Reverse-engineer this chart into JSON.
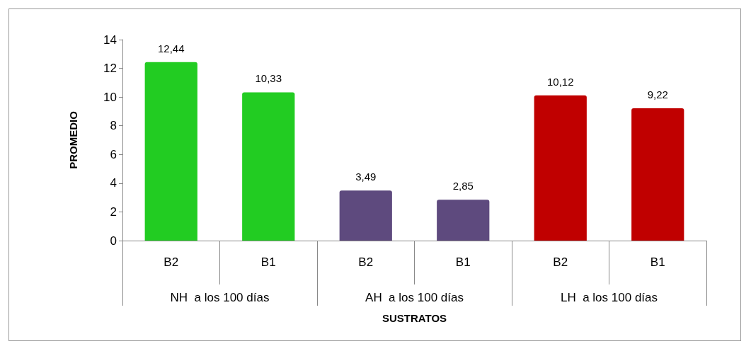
{
  "chart_data": {
    "type": "bar",
    "xlabel": "SUSTRATOS",
    "ylabel": "PROMEDIO",
    "categories": [
      "B2",
      "B1",
      "B2",
      "B1",
      "B2",
      "B1"
    ],
    "annotations": [
      "NH  a los 100 días",
      "AH  a los 100 días",
      "LH  a los 100 días"
    ],
    "values": [
      12.44,
      10.33,
      3.49,
      2.85,
      10.12,
      9.22
    ],
    "value_labels": [
      "12,44",
      "10,33",
      "3,49",
      "2,85",
      "10,12",
      "9,22"
    ],
    "colors": [
      "#22cc22",
      "#22cc22",
      "#5e4a7e",
      "#5e4a7e",
      "#c00000",
      "#c00000"
    ],
    "ylim": [
      0,
      14
    ],
    "yticks": [
      0,
      2,
      4,
      6,
      8,
      10,
      12,
      14
    ],
    "grid": false
  }
}
